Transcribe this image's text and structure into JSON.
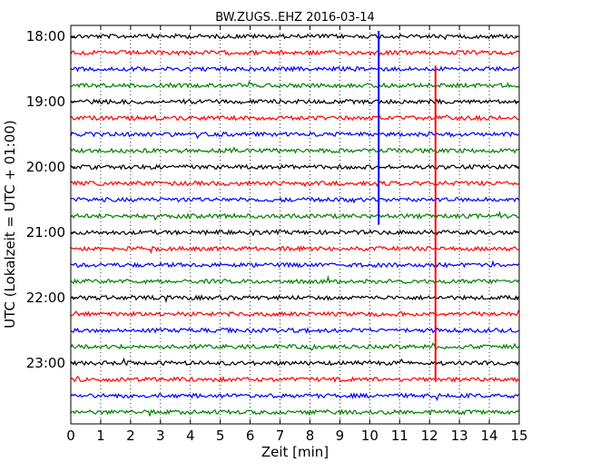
{
  "chart_data": {
    "type": "line",
    "title": "BW.ZUGS..EHZ 2016-03-14",
    "xlabel": "Zeit  [min]",
    "ylabel": "UTC (Lokalzeit = UTC + 01:00)",
    "xlim": [
      0,
      15
    ],
    "x_ticks": [
      0,
      1,
      2,
      3,
      4,
      5,
      6,
      7,
      8,
      9,
      10,
      11,
      12,
      13,
      14,
      15
    ],
    "y_ticks": [
      "18:00",
      "19:00",
      "20:00",
      "21:00",
      "22:00",
      "23:00"
    ],
    "grid": "vertical dotted",
    "trace_start": "18:00",
    "trace_interval_minutes": 15,
    "trace_count": 24,
    "colors": [
      "#000000",
      "#ff0000",
      "#0000ff",
      "#008000"
    ],
    "spikes": [
      {
        "x": 10.3,
        "from": "17:55",
        "to": "20:53",
        "color": "#0000ff"
      },
      {
        "x": 12.2,
        "from": "18:27",
        "to": "23:15",
        "color": "#ff0000"
      }
    ]
  }
}
